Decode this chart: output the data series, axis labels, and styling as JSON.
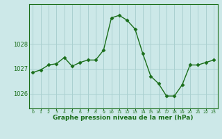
{
  "x": [
    0,
    1,
    2,
    3,
    4,
    5,
    6,
    7,
    8,
    9,
    10,
    11,
    12,
    13,
    14,
    15,
    16,
    17,
    18,
    19,
    20,
    21,
    22,
    23
  ],
  "y": [
    1026.85,
    1026.95,
    1027.15,
    1027.2,
    1027.45,
    1027.1,
    1027.25,
    1027.35,
    1027.35,
    1027.75,
    1029.05,
    1029.15,
    1028.95,
    1028.6,
    1027.6,
    1026.7,
    1026.4,
    1025.9,
    1025.9,
    1026.35,
    1027.15,
    1027.15,
    1027.25,
    1027.35
  ],
  "line_color": "#1a6e1a",
  "marker_color": "#1a6e1a",
  "bg_color": "#cce8e8",
  "grid_color": "#aad0d0",
  "axis_label_color": "#1a6e1a",
  "tick_color": "#1a6e1a",
  "xlabel": "Graphe pression niveau de la mer (hPa)",
  "yticks": [
    1026,
    1027,
    1028
  ],
  "ylim": [
    1025.4,
    1029.6
  ],
  "xlim": [
    -0.5,
    23.5
  ]
}
